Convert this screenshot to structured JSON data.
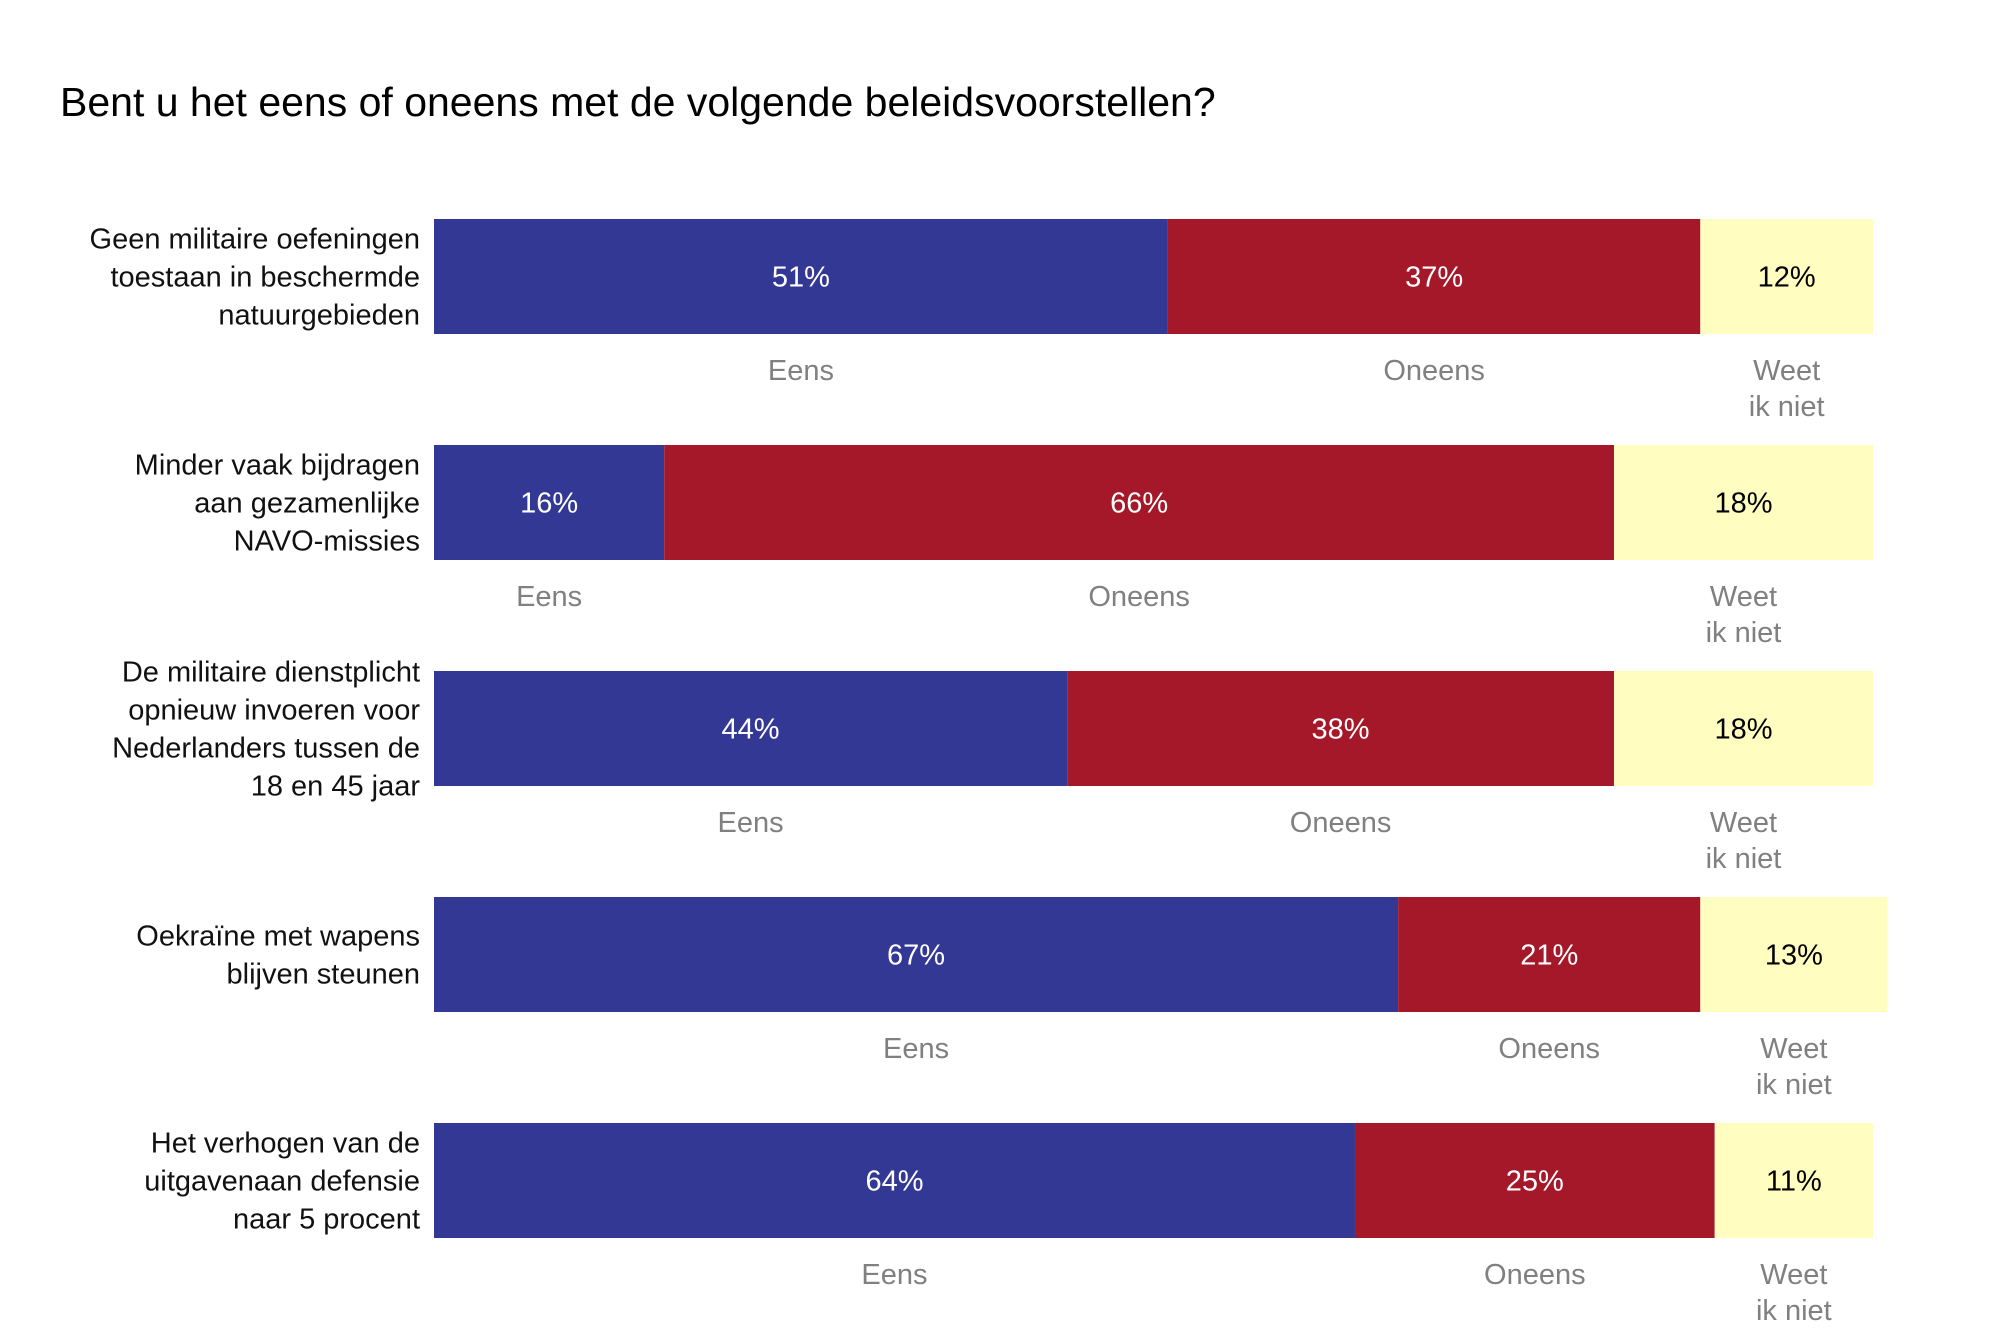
{
  "chart_data": {
    "type": "bar",
    "orientation": "horizontal-stacked",
    "title": "Bent u het eens of oneens met de volgende beleidsvoorstellen?",
    "series_names": [
      "Eens",
      "Oneens",
      "Weet ik niet"
    ],
    "segment_labels": [
      [
        "Eens"
      ],
      [
        "Oneens"
      ],
      [
        "Weet",
        "ik niet"
      ]
    ],
    "colors": [
      "#343895",
      "#A51829",
      "#FFFDC0"
    ],
    "value_text_colors": [
      "#ffffff",
      "#ffffff",
      "#000000"
    ],
    "rows": [
      {
        "question_lines": [
          "Geen militaire oefeningen",
          "toestaan in beschermde",
          "natuurgebieden"
        ],
        "values": [
          51,
          37,
          12
        ],
        "value_labels": [
          "51%",
          "37%",
          "12%"
        ]
      },
      {
        "question_lines": [
          "Minder vaak bijdragen",
          "aan gezamenlijke",
          "NAVO-missies"
        ],
        "values": [
          16,
          66,
          18
        ],
        "value_labels": [
          "16%",
          "66%",
          "18%"
        ]
      },
      {
        "question_lines": [
          "De militaire dienstplicht",
          "opnieuw invoeren voor",
          "Nederlanders tussen de",
          "18 en 45 jaar"
        ],
        "values": [
          44,
          38,
          18
        ],
        "value_labels": [
          "44%",
          "38%",
          "18%"
        ]
      },
      {
        "question_lines": [
          "Oekraïne met wapens",
          "blijven steunen"
        ],
        "values": [
          67,
          21,
          13
        ],
        "value_labels": [
          "67%",
          "21%",
          "13%"
        ]
      },
      {
        "question_lines": [
          "Het verhogen van de",
          "uitgavenaan defensie",
          "naar 5 procent"
        ],
        "values": [
          64,
          25,
          11
        ],
        "value_labels": [
          "64%",
          "25%",
          "11%"
        ]
      }
    ]
  }
}
